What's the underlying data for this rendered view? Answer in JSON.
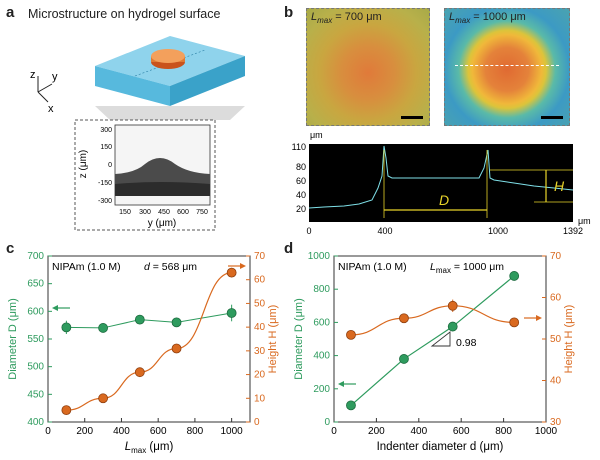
{
  "panel_a": {
    "letter": "a",
    "title": "Microstructure on hydrogel surface",
    "axes_triad": {
      "z": "z",
      "y": "y",
      "x": "x"
    },
    "inset": {
      "ylabel": "z (μm)",
      "xlabel": "y (μm)",
      "yticks": [
        "300",
        "150",
        "0",
        "-150",
        "-300"
      ],
      "xticks": [
        "150",
        "300",
        "450",
        "600",
        "750"
      ]
    }
  },
  "panel_b": {
    "letter": "b",
    "image_left_label": "L",
    "image_left_sub": "max",
    "image_left_value": " = 700 μm",
    "image_right_label": "L",
    "image_right_sub": "max",
    "image_right_value": " = 1000 μm",
    "profile": {
      "yunit": "μm",
      "xunit": "μm",
      "yticks": [
        "110",
        "80",
        "60",
        "40",
        "20"
      ],
      "xticks": [
        "0",
        "400",
        "1000",
        "1392"
      ],
      "label_D": "D",
      "label_H": "H"
    }
  },
  "panel_c": {
    "letter": "c",
    "note": "NIPAm (1.0 M)",
    "note2_var": "d",
    "note2_rest": " = 568 μm",
    "chart_data": {
      "type": "scatter",
      "x": [
        100,
        300,
        500,
        700,
        1000
      ],
      "series": [
        {
          "axis": "left",
          "color": "#2e9b5e",
          "values": [
            571,
            570,
            585,
            580,
            597
          ],
          "errors": [
            12,
            6,
            4,
            4,
            15
          ]
        },
        {
          "axis": "right",
          "color": "#d9691f",
          "values": [
            5,
            10,
            21,
            31,
            63
          ],
          "errors": [
            1,
            1,
            1,
            1,
            2
          ]
        }
      ],
      "ylabel_left": "Diameter D (μm)",
      "ylabel_right": "Height H (μm)",
      "xlabel_main": "L",
      "xlabel_sub": "max",
      "xlabel_unit": " (μm)",
      "xlim": [
        0,
        1100
      ],
      "ylim_left": [
        400,
        700
      ],
      "ylim_right": [
        0,
        70
      ],
      "xticks": [
        0,
        200,
        400,
        600,
        800,
        1000
      ],
      "yticks_left": [
        400,
        450,
        500,
        550,
        600,
        650,
        700
      ],
      "yticks_right": [
        0,
        10,
        20,
        30,
        40,
        50,
        60,
        70
      ]
    }
  },
  "panel_d": {
    "letter": "d",
    "note": "NIPAm (1.0 M)",
    "note2_var": "L",
    "note2_sub": "max",
    "note2_rest": " = 1000 μm",
    "slope_label": "0.98",
    "chart_data": {
      "type": "scatter",
      "x": [
        80,
        330,
        560,
        850
      ],
      "series": [
        {
          "axis": "left",
          "color": "#2e9b5e",
          "values": [
            100,
            380,
            575,
            880
          ],
          "errors": [
            0,
            0,
            0,
            0
          ]
        },
        {
          "axis": "right",
          "color": "#d9691f",
          "values": [
            51,
            55,
            58,
            54
          ],
          "errors": [
            0.8,
            0.8,
            1.5,
            0.8
          ]
        }
      ],
      "ylabel_left": "Diameter D (μm)",
      "ylabel_right": "Height H (μm)",
      "xlabel": "Indenter diameter d (μm)",
      "xlim": [
        0,
        1000
      ],
      "ylim_left": [
        0,
        1000
      ],
      "ylim_right": [
        30,
        70
      ],
      "xticks": [
        0,
        200,
        400,
        600,
        800,
        1000
      ],
      "yticks_left": [
        0,
        200,
        400,
        600,
        800,
        1000
      ],
      "yticks_right": [
        30,
        40,
        50,
        60,
        70
      ]
    }
  }
}
